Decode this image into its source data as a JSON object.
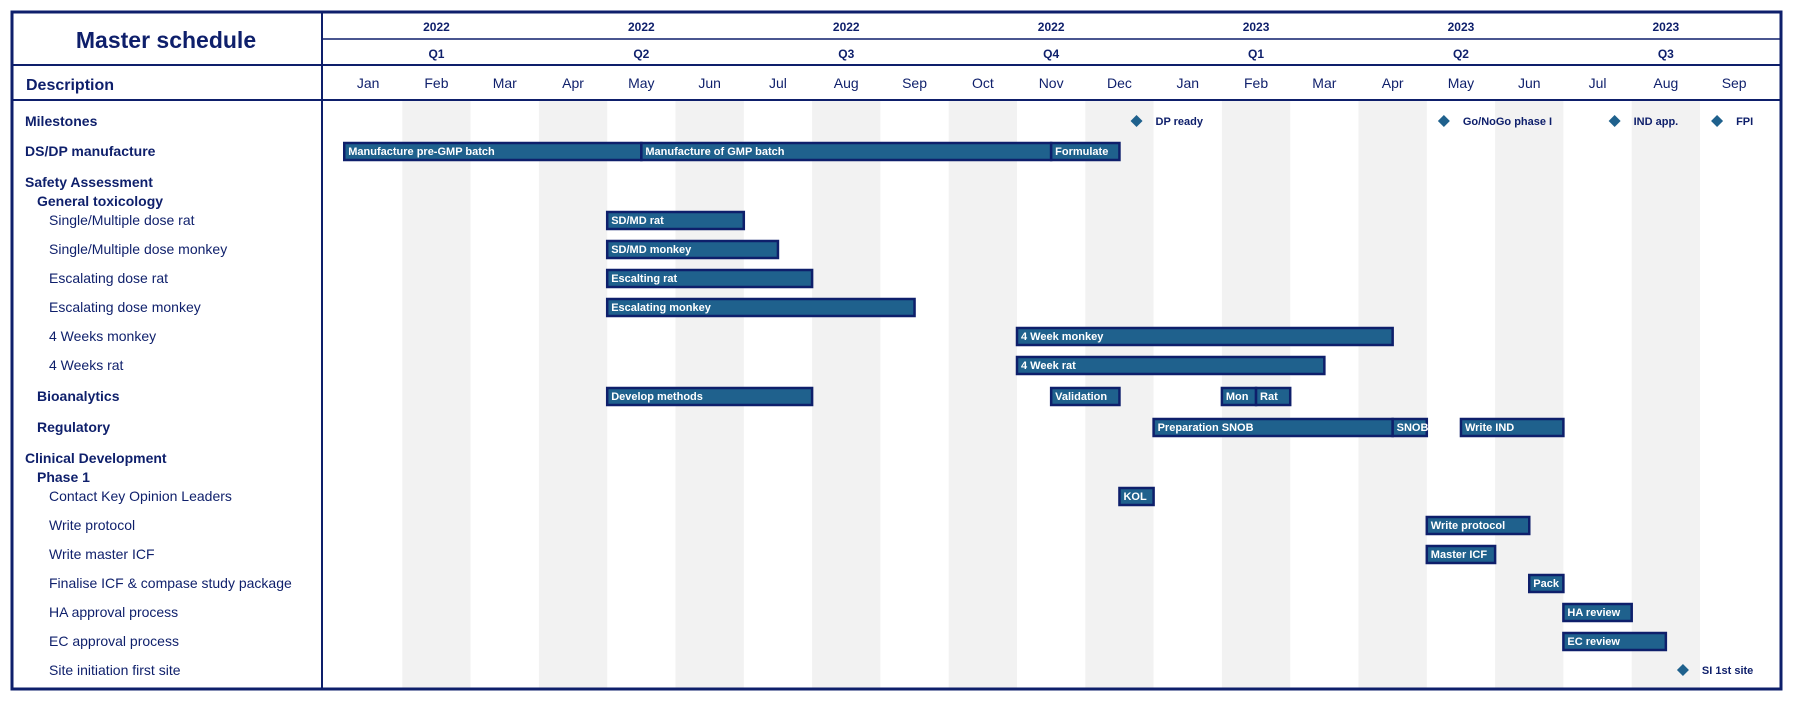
{
  "title": "Master schedule",
  "description_header": "Description",
  "chart_data": {
    "type": "gantt",
    "months": [
      "Jan",
      "Feb",
      "Mar",
      "Apr",
      "May",
      "Jun",
      "Jul",
      "Aug",
      "Sep",
      "Oct",
      "Nov",
      "Dec",
      "Jan",
      "Feb",
      "Mar",
      "Apr",
      "May",
      "Jun",
      "Jul",
      "Aug",
      "Sep"
    ],
    "year_headers": [
      {
        "label": "2022",
        "center": 1.5
      },
      {
        "label": "2022",
        "center": 4.5
      },
      {
        "label": "2022",
        "center": 7.5
      },
      {
        "label": "2022",
        "center": 10.5
      },
      {
        "label": "2023",
        "center": 13.5
      },
      {
        "label": "2023",
        "center": 16.5
      },
      {
        "label": "2023",
        "center": 19.5
      }
    ],
    "quarter_headers": [
      {
        "label": "Q1",
        "center": 1.5
      },
      {
        "label": "Q2",
        "center": 4.5
      },
      {
        "label": "Q3",
        "center": 7.5
      },
      {
        "label": "Q4",
        "center": 10.5
      },
      {
        "label": "Q1",
        "center": 13.5
      },
      {
        "label": "Q2",
        "center": 16.5
      },
      {
        "label": "Q3",
        "center": 19.5
      }
    ],
    "rows": [
      {
        "label": "Milestones",
        "level": 0,
        "milestones": [
          {
            "at": 11.75,
            "label": "DP ready"
          },
          {
            "at": 16.25,
            "label": "Go/NoGo phase I"
          },
          {
            "at": 18.75,
            "label": "IND app."
          },
          {
            "at": 20.25,
            "label": "FPI"
          }
        ]
      },
      {
        "label": "DS/DP manufacture",
        "level": 0,
        "bars": [
          {
            "start": 0.15,
            "end": 4.5,
            "label": "Manufacture pre-GMP batch"
          },
          {
            "start": 4.5,
            "end": 10.5,
            "label": "Manufacture of GMP batch"
          },
          {
            "start": 10.5,
            "end": 11.5,
            "label": "Formulate"
          }
        ]
      },
      {
        "label": "Safety Assessment",
        "level": 0
      },
      {
        "label": "General toxicology",
        "level": 1
      },
      {
        "label": "Single/Multiple dose rat",
        "level": 2,
        "bars": [
          {
            "start": 4.0,
            "end": 6.0,
            "label": "SD/MD rat"
          }
        ]
      },
      {
        "label": "Single/Multiple dose monkey",
        "level": 2,
        "bars": [
          {
            "start": 4.0,
            "end": 6.5,
            "label": "SD/MD monkey"
          }
        ]
      },
      {
        "label": "Escalating dose rat",
        "level": 2,
        "bars": [
          {
            "start": 4.0,
            "end": 7.0,
            "label": "Escalting rat"
          }
        ]
      },
      {
        "label": "Escalating dose monkey",
        "level": 2,
        "bars": [
          {
            "start": 4.0,
            "end": 8.5,
            "label": "Escalating monkey"
          }
        ]
      },
      {
        "label": "4 Weeks monkey",
        "level": 2,
        "bars": [
          {
            "start": 10.0,
            "end": 15.5,
            "label": "4 Week monkey"
          }
        ]
      },
      {
        "label": "4 Weeks rat",
        "level": 2,
        "bars": [
          {
            "start": 10.0,
            "end": 14.5,
            "label": "4 Week rat"
          }
        ]
      },
      {
        "label": "Bioanalytics",
        "level": 1,
        "bars": [
          {
            "start": 4.0,
            "end": 7.0,
            "label": "Develop methods"
          },
          {
            "start": 10.5,
            "end": 11.5,
            "label": "Validation"
          },
          {
            "start": 13.0,
            "end": 13.5,
            "label": "Mon"
          },
          {
            "start": 13.5,
            "end": 14.0,
            "label": "Rat"
          }
        ]
      },
      {
        "label": "Regulatory",
        "level": 1,
        "bars": [
          {
            "start": 12.0,
            "end": 15.5,
            "label": "Preparation SNOB"
          },
          {
            "start": 15.5,
            "end": 16.0,
            "label": "SNOB"
          },
          {
            "start": 16.5,
            "end": 18.0,
            "label": "Write IND"
          }
        ]
      },
      {
        "label": "Clinical Development",
        "level": 0
      },
      {
        "label": "Phase 1",
        "level": 1
      },
      {
        "label": "Contact Key Opinion Leaders",
        "level": 2,
        "bars": [
          {
            "start": 11.5,
            "end": 12.0,
            "label": "KOL"
          }
        ]
      },
      {
        "label": "Write protocol",
        "level": 2,
        "bars": [
          {
            "start": 16.0,
            "end": 17.5,
            "label": "Write protocol"
          }
        ]
      },
      {
        "label": "Write master ICF",
        "level": 2,
        "bars": [
          {
            "start": 16.0,
            "end": 17.0,
            "label": "Master ICF"
          }
        ]
      },
      {
        "label": "Finalise ICF & compase study package",
        "level": 2,
        "bars": [
          {
            "start": 17.5,
            "end": 18.0,
            "label": "Pack"
          }
        ]
      },
      {
        "label": "HA approval process",
        "level": 2,
        "bars": [
          {
            "start": 18.0,
            "end": 19.0,
            "label": "HA review"
          }
        ]
      },
      {
        "label": "EC approval process",
        "level": 2,
        "bars": [
          {
            "start": 18.0,
            "end": 19.5,
            "label": "EC review"
          }
        ]
      },
      {
        "label": "Site initiation first site",
        "level": 2,
        "milestones": [
          {
            "at": 19.75,
            "label": "SI 1st site"
          }
        ]
      }
    ],
    "colors": {
      "bar_fill": "#1f618d",
      "bar_border": "#0e1f6b",
      "shade": "#f2f2f2",
      "diamond": "#1f618d",
      "frame": "#0e1f6b"
    }
  }
}
